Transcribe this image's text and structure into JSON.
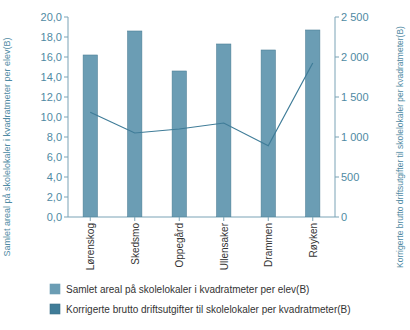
{
  "chart_data": {
    "type": "bar",
    "ylabel": "Samlet areal på skolelokaler i kvadratmeter per elev(B)",
    "y2label": "Korrigerte brutto driftsutgifter til skolelokaler per kvadratmeter(B)",
    "categories": [
      "Lørenskog",
      "Skedsmo",
      "Oppegård",
      "Ullensaker",
      "Drammen",
      "Røyken"
    ],
    "series": [
      {
        "name": "Samlet areal på skolelokaler i kvadratmeter per elev(B)",
        "type": "bar",
        "color": "#6b9db4",
        "values": [
          16.2,
          18.6,
          14.6,
          17.3,
          16.7,
          18.7
        ]
      },
      {
        "name": "Korrigerte brutto driftsutgifter til skolelokaler per kvadratmeter(B)",
        "type": "line",
        "axis": "y2",
        "color": "#3f7c98",
        "values": [
          1310,
          1050,
          1100,
          1175,
          890,
          1925
        ]
      }
    ],
    "ylim": [
      0,
      20
    ],
    "yticks": [
      {
        "value": 0,
        "label": "0,0"
      },
      {
        "value": 2,
        "label": "2,0"
      },
      {
        "value": 4,
        "label": "4,0"
      },
      {
        "value": 6,
        "label": "6,0"
      },
      {
        "value": 8,
        "label": "8,0"
      },
      {
        "value": 10,
        "label": "10,0"
      },
      {
        "value": 12,
        "label": "12,0"
      },
      {
        "value": 14,
        "label": "14,0"
      },
      {
        "value": 16,
        "label": "16,0"
      },
      {
        "value": 18,
        "label": "18,0"
      },
      {
        "value": 20,
        "label": "20,0"
      }
    ],
    "y2lim": [
      0,
      2500
    ],
    "y2ticks": [
      0,
      500,
      {
        "value": 1000,
        "label": "1 000"
      },
      {
        "value": 1500,
        "label": "1 500"
      },
      {
        "value": 2000,
        "label": "2 000"
      },
      {
        "value": 2500,
        "label": "2 500"
      }
    ],
    "grid": false,
    "legend": "bottom"
  }
}
